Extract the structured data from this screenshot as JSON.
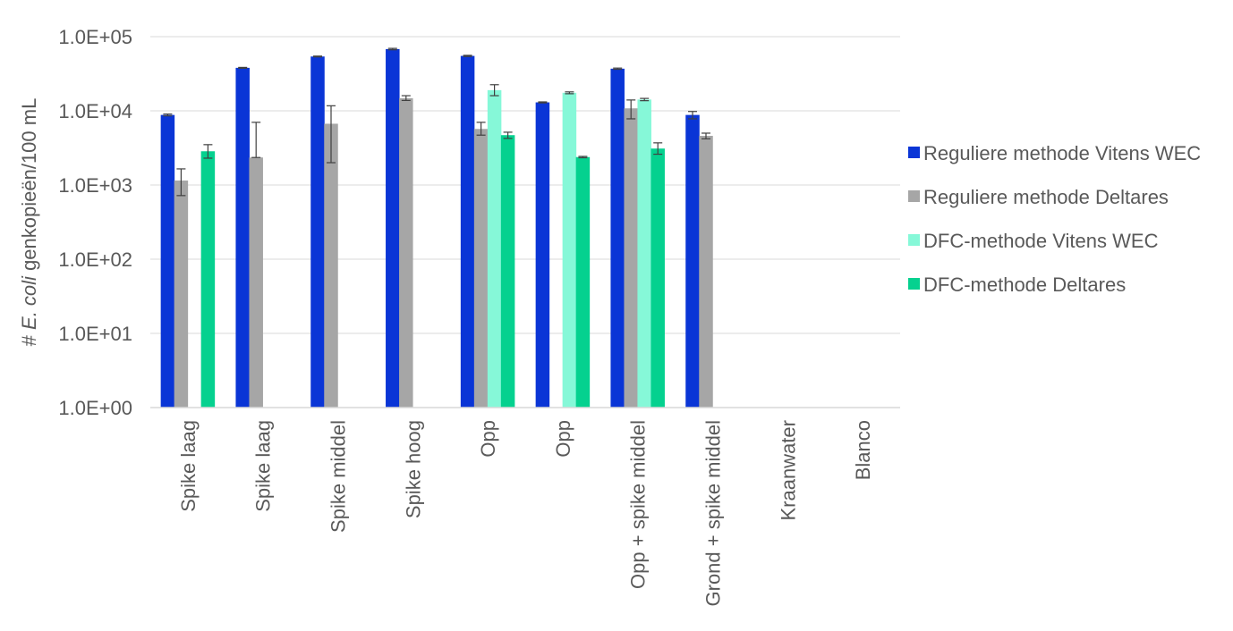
{
  "chart_data": {
    "type": "bar",
    "ylabel_parts": [
      "# ",
      "E. coli",
      " genkopieën/100 mL"
    ],
    "yscale": "log",
    "ylim": [
      1,
      100000
    ],
    "yticks": [
      1,
      10,
      100,
      1000,
      10000,
      100000
    ],
    "ytick_labels": [
      "1.0E+00",
      "1.0E+01",
      "1.0E+02",
      "1.0E+03",
      "1.0E+04",
      "1.0E+05"
    ],
    "grid": true,
    "legend_position": "right",
    "categories": [
      "Spike laag",
      "Spike laag",
      "Spike middel",
      "Spike hoog",
      "Opp",
      "Opp",
      "Opp + spike middel",
      "Grond + spike middel",
      "Kraanwater",
      "Blanco"
    ],
    "series": [
      {
        "name": "Reguliere methode Vitens WEC",
        "color": "#0a35d6",
        "values": [
          8800,
          38000,
          54000,
          68000,
          55000,
          13000,
          37000,
          8800,
          null,
          null
        ],
        "errors": [
          250,
          500,
          700,
          1500,
          1000,
          200,
          700,
          1000,
          null,
          null
        ]
      },
      {
        "name": "Reguliere methode Deltares",
        "color": "#a6a6a6",
        "values": [
          1150,
          2350,
          6700,
          14800,
          5700,
          null,
          10800,
          4600,
          null,
          null
        ],
        "errors": [
          [
            430,
            500
          ],
          [
            0,
            4650
          ],
          [
            4700,
            5000
          ],
          [
            1000,
            1200
          ],
          [
            1000,
            1300
          ],
          null,
          [
            3000,
            3200
          ],
          [
            400,
            400
          ],
          null,
          null
        ]
      },
      {
        "name": "DFC-methode Vitens WEC",
        "color": "#86f8d8",
        "values": [
          null,
          null,
          null,
          null,
          19000,
          17500,
          14200,
          null,
          null,
          null
        ],
        "errors": [
          null,
          null,
          null,
          null,
          [
            3000,
            3500
          ],
          [
            500,
            500
          ],
          [
            500,
            500
          ],
          null,
          null,
          null
        ]
      },
      {
        "name": "DFC-methode Deltares",
        "color": "#05d18f",
        "values": [
          2850,
          null,
          null,
          null,
          4700,
          2380,
          3100,
          null,
          null,
          null
        ],
        "errors": [
          [
            550,
            650
          ],
          null,
          null,
          null,
          [
            450,
            450
          ],
          [
            50,
            50
          ],
          [
            500,
            600
          ],
          null,
          null,
          null
        ]
      }
    ]
  }
}
